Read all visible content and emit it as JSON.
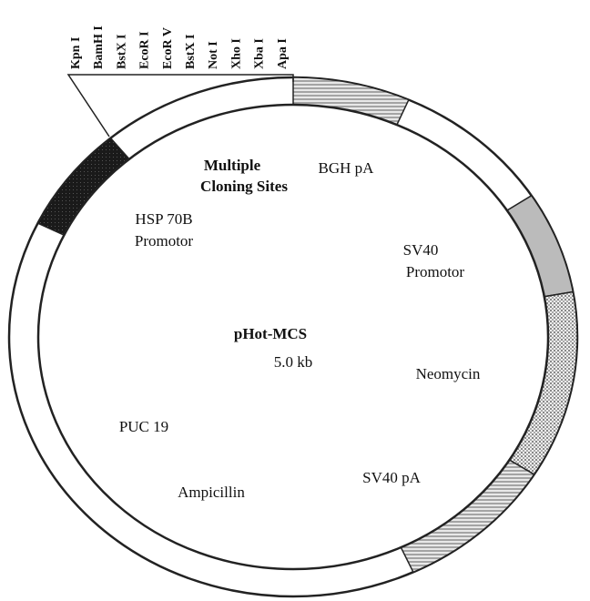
{
  "title": "pHot-MCS",
  "size": "5.0 kb",
  "sites": [
    "Kpn I",
    "BamH I",
    "BstX I",
    "EcoR I",
    "EcoR V",
    "BstX I",
    "Not I",
    "Xho I",
    "Xba I",
    "Apa I"
  ],
  "features": [
    {
      "lines": [
        "Multiple",
        "Cloning Sites"
      ]
    },
    {
      "lines": [
        "BGH pA"
      ]
    },
    {
      "lines": [
        "HSP 70B",
        "Promotor"
      ]
    },
    {
      "lines": [
        "SV40",
        "Promotor"
      ]
    },
    {
      "lines": [
        "Neomycin"
      ]
    },
    {
      "lines": [
        "PUC 19"
      ]
    },
    {
      "lines": [
        "SV40 pA"
      ]
    },
    {
      "lines": [
        "Ampicillin"
      ]
    }
  ]
}
